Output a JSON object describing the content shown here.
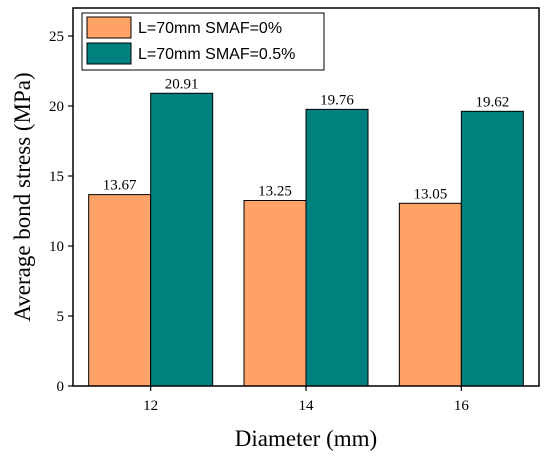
{
  "chart_data": {
    "type": "bar",
    "title": "",
    "xlabel": "Diameter (mm)",
    "ylabel": "Average bond stress (MPa)",
    "categories": [
      "12",
      "14",
      "16"
    ],
    "ylim": [
      0,
      27
    ],
    "yticks": [
      0,
      5,
      10,
      15,
      20,
      25
    ],
    "grid": false,
    "legend_position": "top-left",
    "series": [
      {
        "name": "L=70mm SMAF=0%",
        "color": "#FFA466",
        "values": [
          13.67,
          13.25,
          13.05
        ],
        "labels": [
          "13.67",
          "13.25",
          "13.05"
        ]
      },
      {
        "name": "L=70mm SMAF=0.5%",
        "color": "#00807F",
        "values": [
          20.91,
          19.76,
          19.62
        ],
        "labels": [
          "20.91",
          "19.76",
          "19.62"
        ]
      }
    ]
  }
}
